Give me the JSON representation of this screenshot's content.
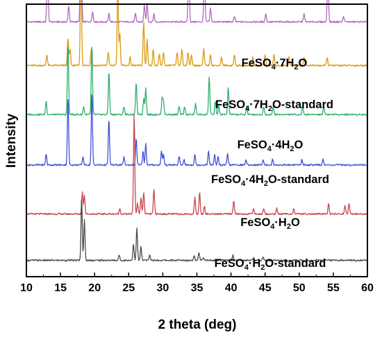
{
  "chart_data": {
    "type": "line",
    "xlabel": "2 theta (deg)",
    "ylabel": "Intensity",
    "xlim": [
      10,
      60
    ],
    "x_ticks": [
      10,
      15,
      20,
      25,
      30,
      35,
      40,
      45,
      50,
      55,
      60
    ],
    "y_ticks_shown": false,
    "grid": false,
    "legend": "inline labels above each trace",
    "series": [
      {
        "name": "FeSO4·7H2O",
        "label_parts": [
          "FeSO",
          "4",
          "·7H",
          "2",
          "O"
        ],
        "color": "#b567c4",
        "baseline": 0.935,
        "peaks": [
          [
            13.1,
            0.3
          ],
          [
            16.2,
            0.06
          ],
          [
            18.0,
            0.65
          ],
          [
            19.7,
            0.04
          ],
          [
            22.1,
            0.03
          ],
          [
            26.0,
            0.03
          ],
          [
            27.3,
            0.06
          ],
          [
            27.7,
            0.07
          ],
          [
            28.7,
            0.03
          ],
          [
            33.8,
            0.25
          ],
          [
            36.1,
            0.2
          ],
          [
            37.0,
            0.05
          ],
          [
            40.5,
            0.02
          ],
          [
            45.1,
            0.03
          ],
          [
            50.7,
            0.03
          ],
          [
            54.2,
            0.2
          ],
          [
            56.5,
            0.02
          ]
        ]
      },
      {
        "name": "FeSO4·7H2O-standard",
        "label_parts": [
          "FeSO",
          "4",
          "·7H",
          "2",
          "O-standard"
        ],
        "color": "#d99a10",
        "baseline": 0.775,
        "peaks": [
          [
            13.0,
            0.04
          ],
          [
            16.1,
            0.1
          ],
          [
            16.4,
            0.06
          ],
          [
            18.0,
            0.42
          ],
          [
            19.5,
            0.06
          ],
          [
            22.0,
            0.05
          ],
          [
            23.4,
            0.28
          ],
          [
            23.7,
            0.12
          ],
          [
            25.2,
            0.03
          ],
          [
            27.2,
            0.16
          ],
          [
            27.7,
            0.1
          ],
          [
            28.6,
            0.06
          ],
          [
            29.5,
            0.04
          ],
          [
            30.1,
            0.05
          ],
          [
            32.1,
            0.05
          ],
          [
            32.8,
            0.06
          ],
          [
            33.7,
            0.05
          ],
          [
            34.2,
            0.04
          ],
          [
            36.0,
            0.06
          ],
          [
            37.0,
            0.04
          ],
          [
            38.6,
            0.03
          ],
          [
            40.5,
            0.04
          ],
          [
            43.2,
            0.03
          ],
          [
            45.0,
            0.04
          ],
          [
            46.3,
            0.04
          ],
          [
            48.5,
            0.03
          ],
          [
            50.7,
            0.03
          ],
          [
            54.1,
            0.03
          ]
        ]
      },
      {
        "name": "FeSO4·4H2O",
        "label_parts": [
          "FeSO",
          "4",
          "·4H",
          "2",
          "O"
        ],
        "color": "#2fae6e",
        "baseline": 0.595,
        "peaks": [
          [
            12.9,
            0.05
          ],
          [
            16.1,
            0.26
          ],
          [
            18.4,
            0.03
          ],
          [
            19.6,
            0.26
          ],
          [
            22.1,
            0.16
          ],
          [
            24.3,
            0.03
          ],
          [
            26.1,
            0.12
          ],
          [
            27.2,
            0.06
          ],
          [
            27.5,
            0.1
          ],
          [
            29.9,
            0.06
          ],
          [
            30.1,
            0.05
          ],
          [
            32.4,
            0.03
          ],
          [
            33.2,
            0.03
          ],
          [
            34.8,
            0.04
          ],
          [
            36.8,
            0.14
          ],
          [
            37.7,
            0.05
          ],
          [
            38.2,
            0.03
          ],
          [
            39.6,
            0.1
          ],
          [
            42.3,
            0.03
          ],
          [
            44.8,
            0.03
          ],
          [
            46.2,
            0.03
          ],
          [
            50.5,
            0.03
          ],
          [
            53.6,
            0.03
          ]
        ]
      },
      {
        "name": "FeSO4·4H2O-standard",
        "label_parts": [
          "FeSO",
          "4",
          "·4H",
          "2",
          "O-standard"
        ],
        "color": "#3c52d4",
        "baseline": 0.41,
        "peaks": [
          [
            12.9,
            0.04
          ],
          [
            16.1,
            0.25
          ],
          [
            18.3,
            0.03
          ],
          [
            19.6,
            0.27
          ],
          [
            22.1,
            0.17
          ],
          [
            24.3,
            0.03
          ],
          [
            26.1,
            0.1
          ],
          [
            27.1,
            0.05
          ],
          [
            27.5,
            0.08
          ],
          [
            29.8,
            0.05
          ],
          [
            30.1,
            0.04
          ],
          [
            32.4,
            0.03
          ],
          [
            33.1,
            0.02
          ],
          [
            34.7,
            0.04
          ],
          [
            36.7,
            0.05
          ],
          [
            37.6,
            0.04
          ],
          [
            38.1,
            0.03
          ],
          [
            39.5,
            0.04
          ],
          [
            42.2,
            0.02
          ],
          [
            44.7,
            0.02
          ],
          [
            46.1,
            0.02
          ],
          [
            50.4,
            0.02
          ],
          [
            53.5,
            0.02
          ]
        ]
      },
      {
        "name": "FeSO4·H2O",
        "label_parts": [
          "FeSO",
          "4",
          "·H",
          "2",
          "O"
        ],
        "color": "#c8454d",
        "baseline": 0.23,
        "peaks": [
          [
            18.2,
            0.08
          ],
          [
            18.5,
            0.07
          ],
          [
            23.7,
            0.02
          ],
          [
            25.8,
            0.37
          ],
          [
            26.3,
            0.04
          ],
          [
            26.8,
            0.06
          ],
          [
            27.2,
            0.08
          ],
          [
            28.7,
            0.09
          ],
          [
            34.7,
            0.06
          ],
          [
            35.4,
            0.08
          ],
          [
            36.1,
            0.03
          ],
          [
            40.4,
            0.05
          ],
          [
            43.3,
            0.02
          ],
          [
            44.8,
            0.02
          ],
          [
            46.7,
            0.02
          ],
          [
            49.2,
            0.02
          ],
          [
            54.3,
            0.04
          ],
          [
            56.7,
            0.03
          ],
          [
            57.3,
            0.04
          ]
        ]
      },
      {
        "name": "FeSO4·H2O-standard",
        "label_parts": [
          "FeSO",
          "4",
          "·H",
          "2",
          "O-standard"
        ],
        "color": "#4a4a4a",
        "baseline": 0.06,
        "peaks": [
          [
            18.1,
            0.23
          ],
          [
            18.5,
            0.15
          ],
          [
            23.6,
            0.02
          ],
          [
            25.7,
            0.06
          ],
          [
            26.2,
            0.12
          ],
          [
            26.8,
            0.05
          ],
          [
            28.1,
            0.02
          ],
          [
            34.6,
            0.02
          ],
          [
            35.3,
            0.03
          ],
          [
            36.0,
            0.01
          ],
          [
            40.3,
            0.02
          ],
          [
            43.3,
            0.01
          ],
          [
            44.7,
            0.01
          ]
        ]
      }
    ]
  }
}
